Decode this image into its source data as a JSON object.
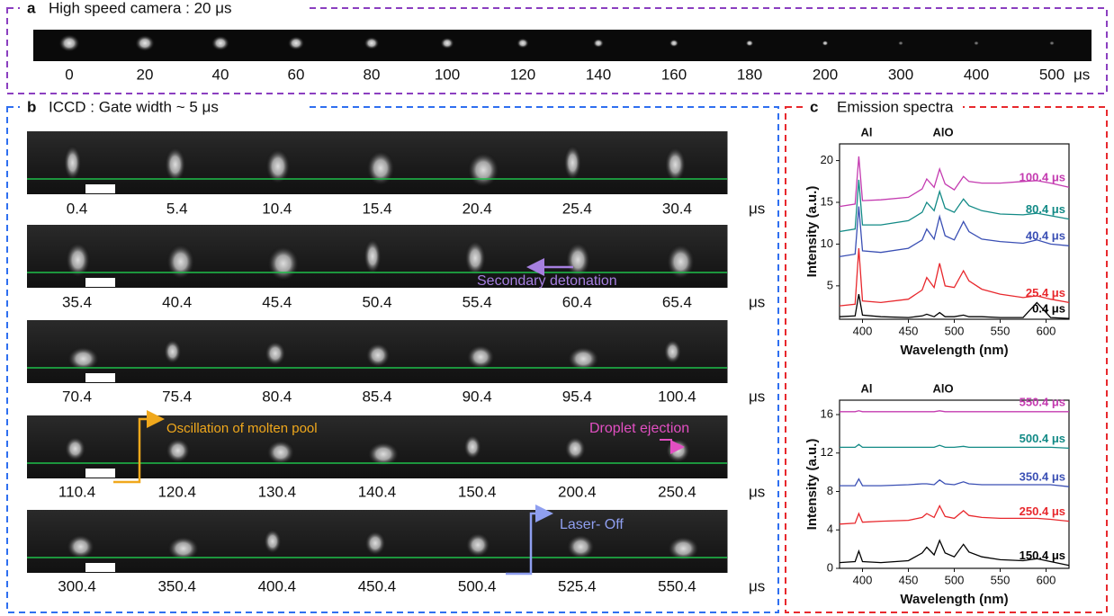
{
  "panel_a": {
    "letter": "a",
    "title": "High speed camera : 20 μs",
    "labels": [
      "0",
      "20",
      "40",
      "60",
      "80",
      "100",
      "120",
      "140",
      "160",
      "180",
      "200",
      "300",
      "400",
      "500"
    ],
    "unit": "μs"
  },
  "panel_b": {
    "letter": "b",
    "title": "ICCD : Gate width ~ 5 μs",
    "unit": "μs",
    "rows": [
      [
        "0.4",
        "5.4",
        "10.4",
        "15.4",
        "20.4",
        "25.4",
        "30.4"
      ],
      [
        "35.4",
        "40.4",
        "45.4",
        "50.4",
        "55.4",
        "60.4",
        "65.4"
      ],
      [
        "70.4",
        "75.4",
        "80.4",
        "85.4",
        "90.4",
        "95.4",
        "100.4"
      ],
      [
        "110.4",
        "120.4",
        "130.4",
        "140.4",
        "150.4",
        "200.4",
        "250.4"
      ],
      [
        "300.4",
        "350.4",
        "400.4",
        "450.4",
        "500.4",
        "525.4",
        "550.4"
      ]
    ],
    "annotations": [
      "Secondary detonation",
      "Oscillation of molten pool",
      "Droplet ejection",
      "Laser- Off"
    ]
  },
  "panel_c": {
    "letter": "c",
    "title": "Emission spectra"
  },
  "chart_data": [
    {
      "type": "line",
      "xlabel": "Wavelength (nm)",
      "ylabel": "Intensity (a.u.)",
      "annotations": [
        "Al",
        "AlO"
      ],
      "xlim": [
        375,
        625
      ],
      "xticks": [
        400,
        450,
        500,
        550,
        600
      ],
      "ylim": [
        1,
        22
      ],
      "yticks": [
        5,
        10,
        15,
        20
      ],
      "x": [
        375,
        392,
        396,
        400,
        420,
        450,
        465,
        470,
        478,
        484,
        490,
        500,
        510,
        516,
        530,
        550,
        575,
        590,
        605,
        625
      ],
      "series": [
        {
          "name": "0.4 μs",
          "color": "#000000",
          "values": [
            1.3,
            1.4,
            4.0,
            1.5,
            1.3,
            1.2,
            1.4,
            1.6,
            1.3,
            1.8,
            1.3,
            1.3,
            1.5,
            1.3,
            1.3,
            1.2,
            1.2,
            3.0,
            1.2,
            1.1
          ]
        },
        {
          "name": "25.4 μs",
          "color": "#e8282d",
          "values": [
            2.6,
            2.8,
            9.5,
            3.2,
            3.0,
            3.4,
            4.5,
            6.0,
            4.8,
            7.7,
            5.0,
            4.8,
            6.8,
            5.6,
            4.6,
            4.0,
            3.6,
            3.8,
            3.4,
            3.0
          ]
        },
        {
          "name": "40.4 μs",
          "color": "#3a4fb4",
          "values": [
            8.5,
            8.8,
            14.5,
            9.2,
            9.0,
            9.5,
            10.5,
            11.8,
            10.6,
            13.3,
            11.0,
            10.5,
            12.7,
            11.5,
            10.6,
            10.3,
            10.1,
            10.5,
            10.0,
            9.8
          ]
        },
        {
          "name": "80.4 μs",
          "color": "#128a86",
          "values": [
            11.5,
            11.8,
            17.7,
            12.3,
            12.3,
            12.8,
            13.8,
            15.0,
            14.0,
            16.3,
            14.3,
            13.8,
            15.4,
            14.6,
            14.0,
            13.6,
            13.5,
            13.7,
            13.4,
            13.0
          ]
        },
        {
          "name": "100.4 μs",
          "color": "#c43bb0",
          "values": [
            14.5,
            14.8,
            20.5,
            15.2,
            15.3,
            15.6,
            16.6,
            17.8,
            16.8,
            19.0,
            17.2,
            16.5,
            18.1,
            17.5,
            17.3,
            17.3,
            17.5,
            17.6,
            17.3,
            16.8
          ]
        }
      ]
    },
    {
      "type": "line",
      "xlabel": "Wavelength (nm)",
      "ylabel": "Intensity (a.u.)",
      "annotations": [
        "Al",
        "AlO"
      ],
      "xlim": [
        375,
        625
      ],
      "xticks": [
        400,
        450,
        500,
        550,
        600
      ],
      "ylim": [
        0,
        17.5
      ],
      "yticks": [
        0,
        4,
        8,
        12,
        16
      ],
      "x": [
        375,
        392,
        396,
        400,
        420,
        450,
        465,
        470,
        478,
        484,
        490,
        500,
        510,
        516,
        530,
        550,
        575,
        590,
        605,
        625
      ],
      "series": [
        {
          "name": "150.4 μs",
          "color": "#000000",
          "values": [
            0.6,
            0.7,
            1.8,
            0.7,
            0.6,
            0.8,
            1.6,
            2.2,
            1.4,
            2.9,
            1.6,
            1.2,
            2.5,
            1.7,
            1.2,
            0.9,
            0.8,
            1.0,
            0.7,
            0.3
          ]
        },
        {
          "name": "250.4 μs",
          "color": "#e8282d",
          "values": [
            4.6,
            4.7,
            5.7,
            4.8,
            4.9,
            5.0,
            5.3,
            5.7,
            5.3,
            6.5,
            5.4,
            5.2,
            6.0,
            5.5,
            5.3,
            5.2,
            5.2,
            5.2,
            5.1,
            4.9
          ]
        },
        {
          "name": "350.4 μs",
          "color": "#3a4fb4",
          "values": [
            8.6,
            8.6,
            9.3,
            8.6,
            8.6,
            8.7,
            8.8,
            8.8,
            8.7,
            9.2,
            8.8,
            8.7,
            9.0,
            8.8,
            8.7,
            8.7,
            8.7,
            8.7,
            8.7,
            8.5
          ]
        },
        {
          "name": "500.4 μs",
          "color": "#128a86",
          "values": [
            12.6,
            12.6,
            12.9,
            12.6,
            12.6,
            12.6,
            12.6,
            12.6,
            12.6,
            12.8,
            12.6,
            12.6,
            12.7,
            12.6,
            12.6,
            12.6,
            12.6,
            12.6,
            12.6,
            12.5
          ]
        },
        {
          "name": "550.4 μs",
          "color": "#c43bb0",
          "values": [
            16.3,
            16.3,
            16.4,
            16.3,
            16.3,
            16.3,
            16.3,
            16.3,
            16.3,
            16.4,
            16.3,
            16.3,
            16.3,
            16.3,
            16.3,
            16.3,
            16.3,
            16.3,
            16.3,
            16.3
          ]
        }
      ]
    }
  ]
}
